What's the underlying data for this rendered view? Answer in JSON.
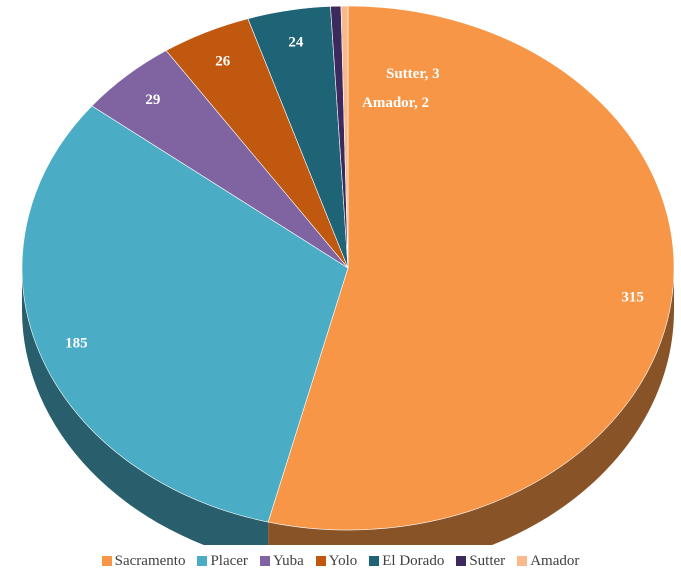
{
  "chart_data": {
    "type": "pie",
    "style": "3d",
    "categories": [
      "Sacramento",
      "Placer",
      "Yuba",
      "Yolo",
      "El Dorado",
      "Sutter",
      "Amador"
    ],
    "values": [
      315,
      185,
      29,
      26,
      24,
      3,
      2
    ],
    "colors": [
      "#f79646",
      "#4bacc6",
      "#8064a2",
      "#c0580f",
      "#1f6377",
      "#3c2a5e",
      "#f9b98a"
    ],
    "data_labels": [
      "315",
      "185",
      "29",
      "26",
      "24",
      "Sutter, 3",
      "Amador, 2"
    ],
    "legend_position": "bottom",
    "title": ""
  }
}
